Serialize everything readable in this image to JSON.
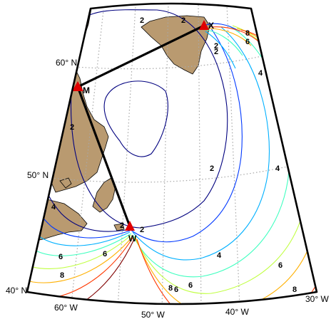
{
  "map": {
    "graticule_labels": {
      "lat_60": "60° N",
      "lat_50": "50° N",
      "lat_40": "40° N",
      "lon_60": "60° W",
      "lon_50": "50° W",
      "lon_40": "40° W",
      "lon_30": "30° W"
    },
    "stations": [
      {
        "id": "X",
        "label": "X"
      },
      {
        "id": "M",
        "label": "M"
      },
      {
        "id": "W",
        "label": "W"
      }
    ],
    "contour_labels": [
      "2",
      "2",
      "2",
      "2",
      "2",
      "2",
      "2",
      "4",
      "4",
      "4",
      "4",
      "6",
      "6",
      "6",
      "6",
      "6",
      "6",
      "8",
      "8",
      "8",
      "8",
      "2"
    ],
    "colors": {
      "land": "#b99a70",
      "station_marker": "#e00000",
      "baseline": "#000000",
      "graticule": "#a8a8a8",
      "contour_2": "#00007f",
      "contour_3": "#0038ff",
      "contour_4": "#00b0ff",
      "contour_5": "#40ffc0",
      "contour_6": "#c0ff40",
      "contour_7": "#ffb000",
      "contour_8": "#ff3800",
      "contour_9": "#800000"
    }
  }
}
